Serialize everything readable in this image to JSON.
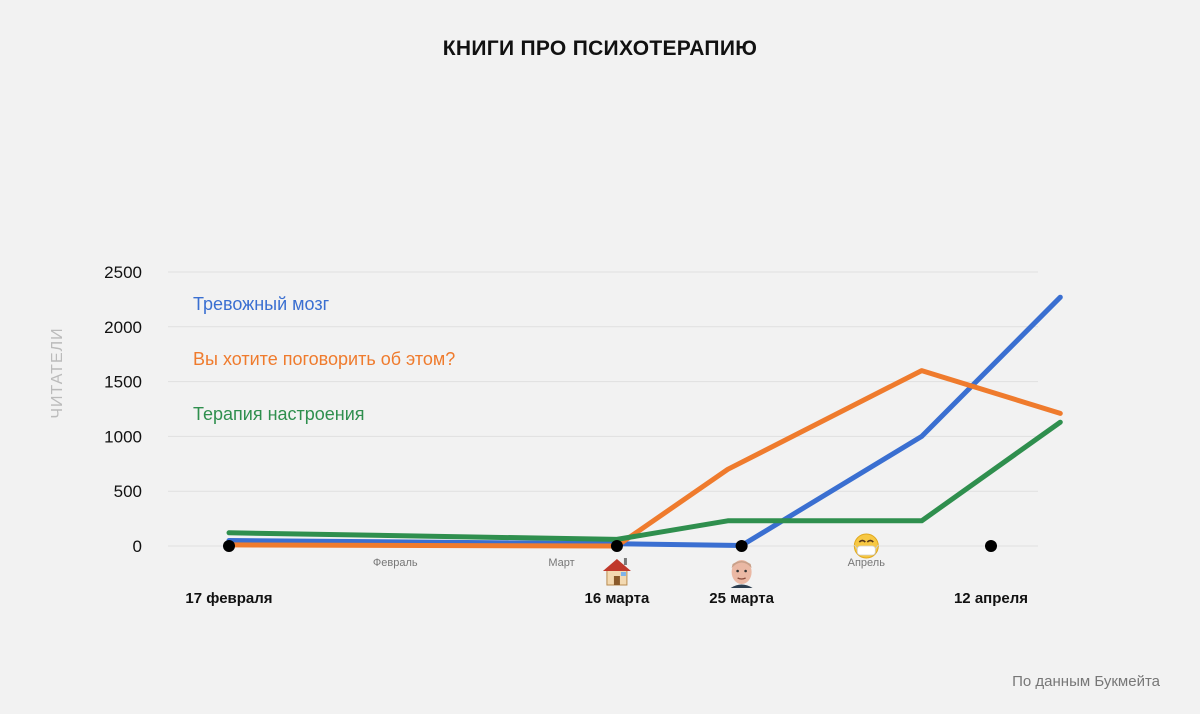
{
  "chart_data": {
    "type": "line",
    "title": "КНИГИ ПРО ПСИХОТЕРАПИЮ",
    "ylabel": "ЧИТАТЕЛИ",
    "ylim": [
      0,
      2500
    ],
    "yticks": [
      "0",
      "500",
      "1000",
      "1500",
      "2000",
      "2500"
    ],
    "grid": true,
    "x_domain": [
      "2020-02-17",
      "2020-04-12"
    ],
    "month_labels": [
      {
        "label": "Февраль",
        "date": "2020-02-29"
      },
      {
        "label": "Март",
        "date": "2020-03-12"
      },
      {
        "label": "Апрель",
        "date": "2020-04-03"
      }
    ],
    "events": [
      {
        "date": "2020-02-17",
        "label": "17 февраля",
        "icon": ""
      },
      {
        "date": "2020-03-16",
        "label": "16 марта",
        "icon": "house-icon"
      },
      {
        "date": "2020-03-25",
        "label": "25 марта",
        "icon": "person-face-icon"
      },
      {
        "date": "2020-04-03",
        "label": "",
        "icon": "medical-mask-face-icon"
      },
      {
        "date": "2020-04-12",
        "label": "12 апреля",
        "icon": ""
      }
    ],
    "series": [
      {
        "name": "Тревожный мозг",
        "color": "#3a6fd1",
        "points": [
          {
            "x": "2020-02-17",
            "y": 50
          },
          {
            "x": "2020-03-16",
            "y": 20
          },
          {
            "x": "2020-03-25",
            "y": 5
          },
          {
            "x": "2020-04-07",
            "y": 1000
          },
          {
            "x": "2020-04-17",
            "y": 2270
          }
        ]
      },
      {
        "name": "Вы хотите поговорить об этом?",
        "color": "#ef7b2d",
        "points": [
          {
            "x": "2020-02-17",
            "y": 10
          },
          {
            "x": "2020-03-16",
            "y": 0
          },
          {
            "x": "2020-03-24",
            "y": 700
          },
          {
            "x": "2020-04-07",
            "y": 1600
          },
          {
            "x": "2020-04-17",
            "y": 1210
          }
        ]
      },
      {
        "name": "Терапия настроения",
        "color": "#2f8f4e",
        "points": [
          {
            "x": "2020-02-17",
            "y": 120
          },
          {
            "x": "2020-03-16",
            "y": 60
          },
          {
            "x": "2020-03-24",
            "y": 230
          },
          {
            "x": "2020-04-07",
            "y": 230
          },
          {
            "x": "2020-04-17",
            "y": 1130
          }
        ]
      }
    ]
  },
  "footer": {
    "source": "По данным Букмейта"
  }
}
